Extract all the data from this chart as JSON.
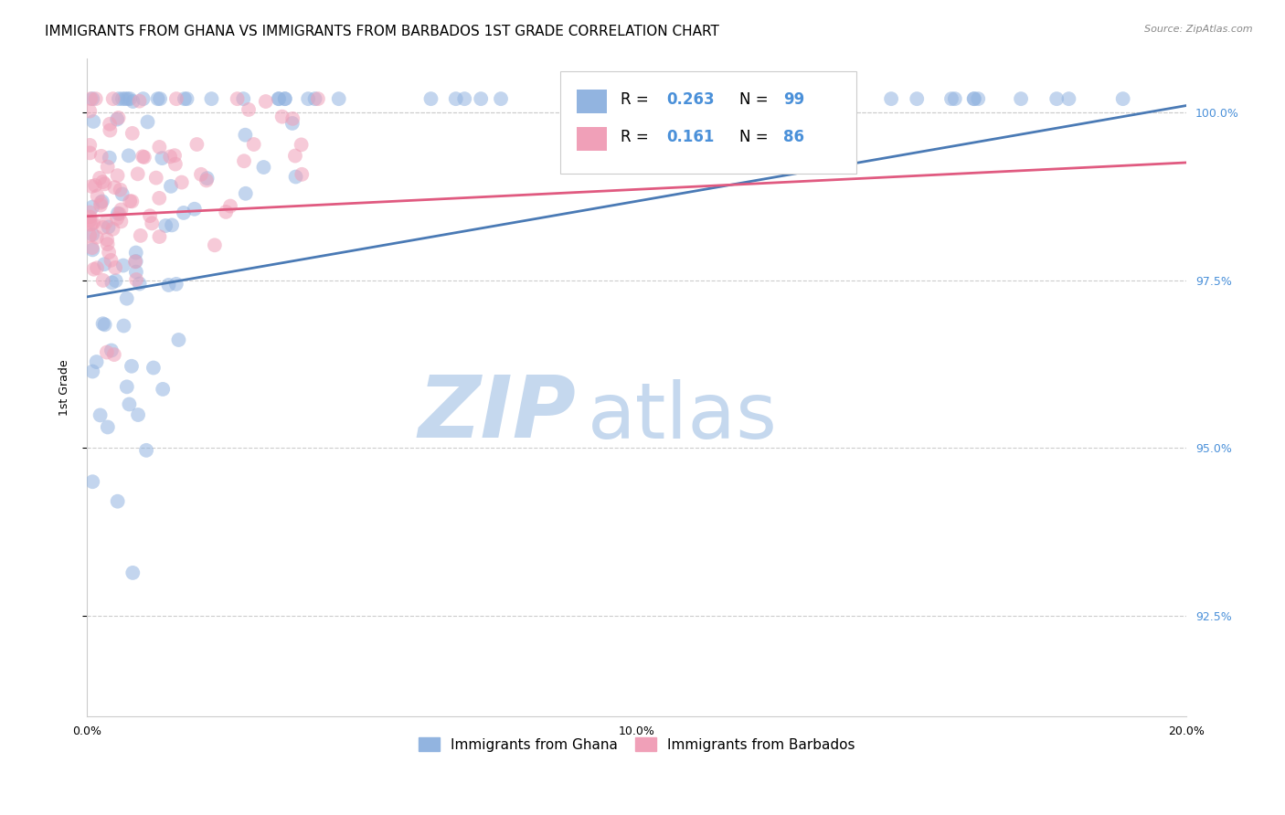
{
  "title": "IMMIGRANTS FROM GHANA VS IMMIGRANTS FROM BARBADOS 1ST GRADE CORRELATION CHART",
  "source": "Source: ZipAtlas.com",
  "ylabel": "1st Grade",
  "x_min": 0.0,
  "x_max": 0.2,
  "y_min": 0.91,
  "y_max": 1.008,
  "ghana_R": 0.263,
  "ghana_N": 99,
  "barbados_R": 0.161,
  "barbados_N": 86,
  "ghana_color": "#92b4e0",
  "barbados_color": "#f0a0b8",
  "ghana_line_color": "#4a7ab5",
  "barbados_line_color": "#e05a80",
  "legend_label_ghana": "Immigrants from Ghana",
  "legend_label_barbados": "Immigrants from Barbados",
  "ytick_values": [
    0.925,
    0.95,
    0.975,
    1.0
  ],
  "xtick_labels": [
    "0.0%",
    "",
    "",
    "",
    "",
    "10.0%",
    "",
    "",
    "",
    "",
    "20.0%"
  ],
  "xtick_values": [
    0.0,
    0.02,
    0.04,
    0.06,
    0.08,
    0.1,
    0.12,
    0.14,
    0.16,
    0.18,
    0.2
  ],
  "ghana_line_y0": 0.9725,
  "ghana_line_y1": 1.001,
  "barbados_line_y0": 0.9845,
  "barbados_line_y1": 0.9925,
  "watermark_zip": "ZIP",
  "watermark_atlas": "atlas",
  "watermark_color_zip": "#c5d8ee",
  "watermark_color_atlas": "#c5d8ee",
  "background_color": "#ffffff",
  "grid_color": "#cccccc",
  "right_axis_color": "#4a90d9",
  "title_fontsize": 11,
  "axis_label_fontsize": 9,
  "tick_fontsize": 9
}
